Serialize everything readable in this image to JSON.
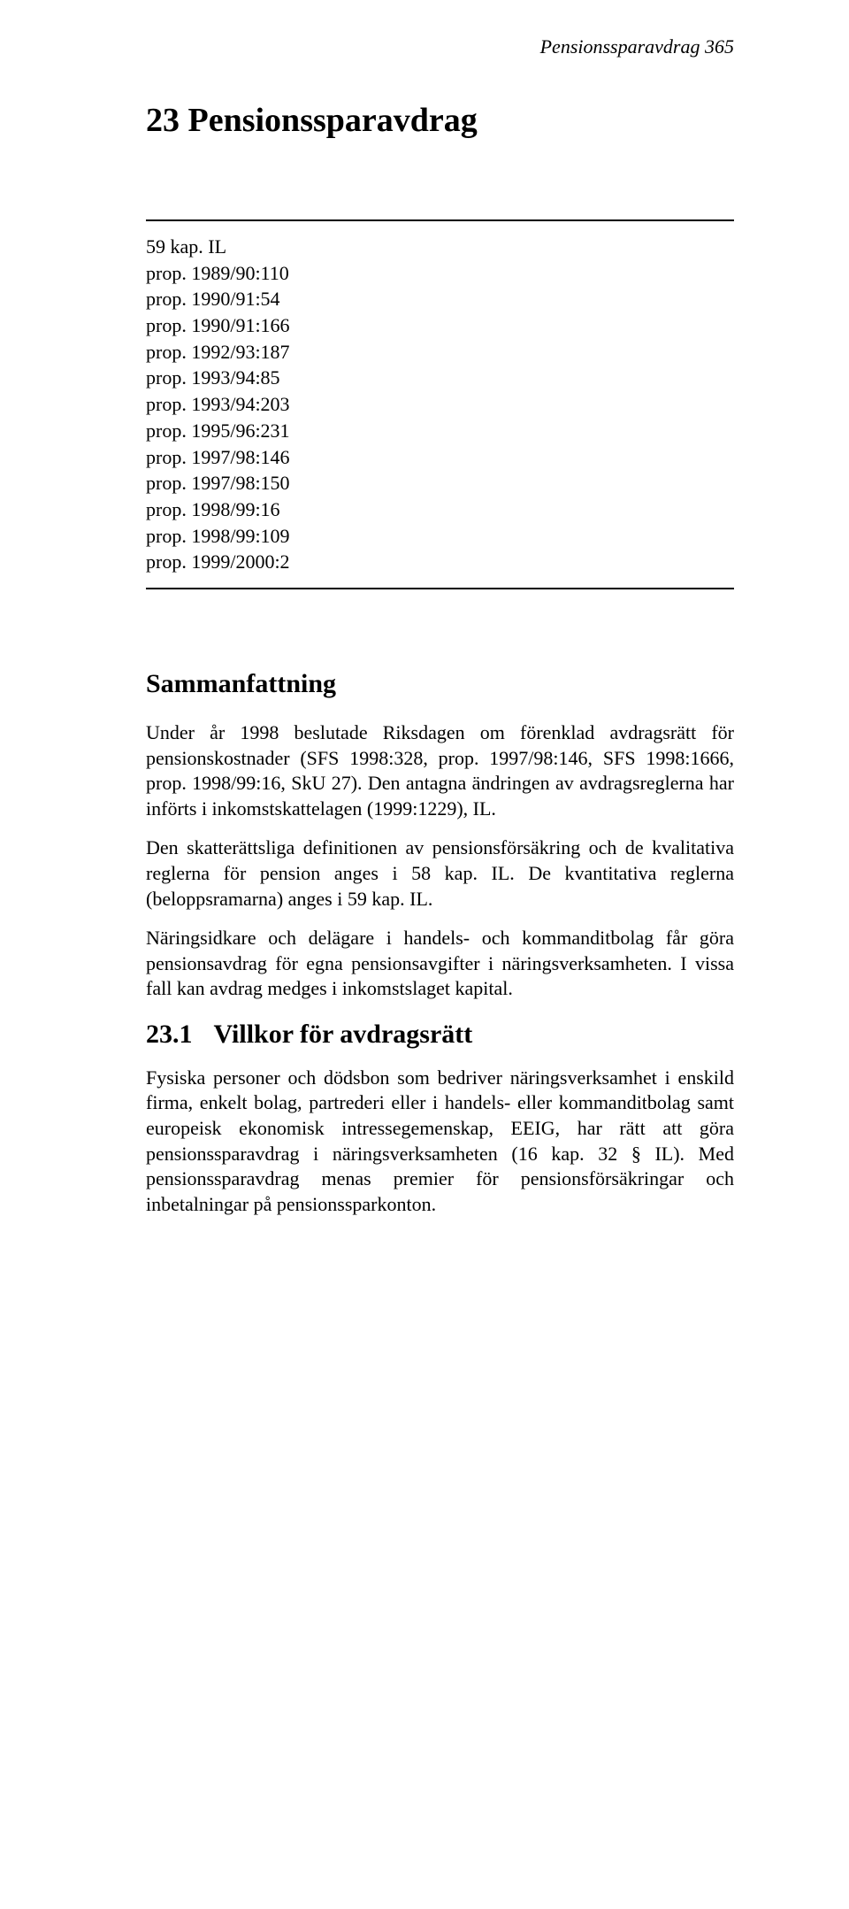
{
  "running_header": "Pensionssparavdrag 365",
  "chapter_title": "23  Pensionssparavdrag",
  "refs": [
    "59 kap. IL",
    "prop. 1989/90:110",
    "prop. 1990/91:54",
    "prop. 1990/91:166",
    "prop. 1992/93:187",
    "prop. 1993/94:85",
    "prop. 1993/94:203",
    "prop. 1995/96:231",
    "prop. 1997/98:146",
    "prop. 1997/98:150",
    "prop. 1998/99:16",
    "prop. 1998/99:109",
    "prop. 1999/2000:2"
  ],
  "summary_title": "Sammanfattning",
  "paras": {
    "p1": "Under år 1998 beslutade Riksdagen om förenklad avdragsrätt för pensionskostnader (SFS 1998:328, prop. 1997/98:146, SFS 1998:1666, prop. 1998/99:16, SkU 27). Den antagna ändringen av avdragsreglerna har införts i inkomstskattelagen (1999:1229), IL.",
    "p2": "Den skatterättsliga definitionen av pensionsförsäkring och de kvalitativa reglerna för pension anges i 58 kap. IL. De kvantitativa reglerna (beloppsramarna) anges i 59 kap. IL.",
    "p3": "Näringsidkare och delägare i handels- och kommanditbolag får göra pensionsavdrag för egna pensionsavgifter i näringsverksamheten. I vissa fall kan avdrag medges i inkomstslaget kapital."
  },
  "section": {
    "number": "23.1",
    "title": "Villkor för avdragsrätt",
    "body": "Fysiska personer och dödsbon som bedriver näringsverksamhet i enskild firma, enkelt bolag, partrederi eller i handels- eller kommanditbolag samt europeisk ekonomisk intressegemenskap, EEIG, har rätt att göra pensionssparavdrag i näringsverksamheten (16 kap. 32 § IL). Med pensionssparavdrag menas premier för pensionsförsäkringar och inbetalningar på pensionssparkonton."
  }
}
